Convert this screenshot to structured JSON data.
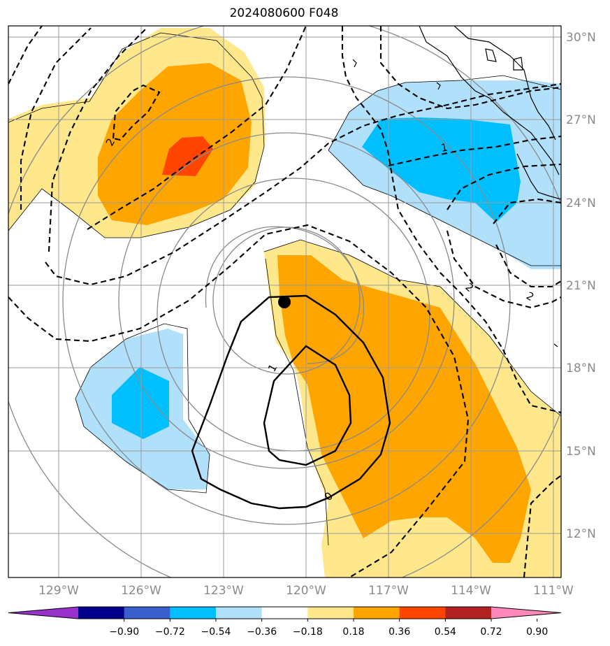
{
  "title": "2024080600 F048",
  "map": {
    "lon_labels": [
      "129°W",
      "126°W",
      "123°W",
      "120°W",
      "117°W",
      "114°W",
      "111°W"
    ],
    "lat_labels": [
      "30°N",
      "27°N",
      "24°N",
      "21°N",
      "18°N",
      "15°N",
      "12°N"
    ],
    "contour_labels": [
      "2",
      "1",
      "2",
      "2",
      "1",
      "0"
    ],
    "storm_marker": {
      "lon": "120.8°W",
      "lat": "20.4°N"
    }
  },
  "colorbar": {
    "ticks": [
      "−0.90",
      "−0.72",
      "−0.54",
      "−0.36",
      "−0.18",
      "0.18",
      "0.36",
      "0.54",
      "0.72",
      "0.90"
    ],
    "colors": [
      "#9932cc",
      "#00008b",
      "#3a5fcd",
      "#00bfff",
      "#b0e0fa",
      "#ffffff",
      "#ffe88c",
      "#ffa500",
      "#ff4500",
      "#b22222",
      "#ff88bb"
    ]
  }
}
